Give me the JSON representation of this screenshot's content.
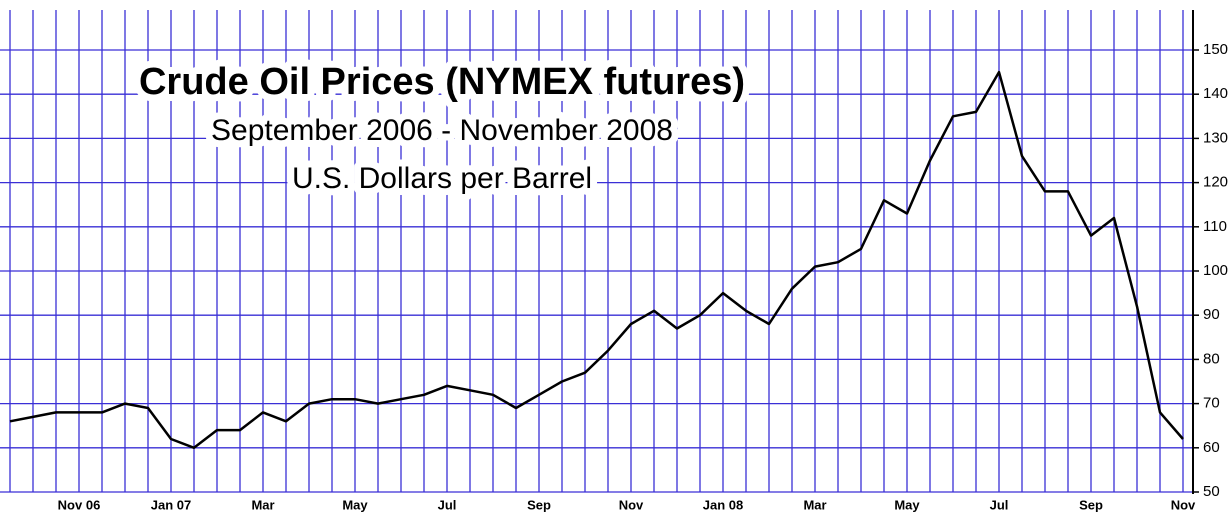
{
  "chart_data": {
    "type": "line",
    "title": "Crude Oil Prices (NYMEX futures)",
    "subtitle": "September 2006 - November 2008",
    "ylabel": "U.S. Dollars per Barrel",
    "categories": [
      null,
      null,
      null,
      "Nov 06",
      null,
      null,
      null,
      "Jan 07",
      null,
      null,
      null,
      "Mar",
      null,
      null,
      null,
      "May",
      null,
      null,
      null,
      "Jul",
      null,
      null,
      null,
      "Sep",
      null,
      null,
      null,
      "Nov",
      null,
      null,
      null,
      "Jan 08",
      null,
      null,
      null,
      "Mar",
      null,
      null,
      null,
      "May",
      null,
      null,
      null,
      "Jul",
      null,
      null,
      null,
      "Sep",
      null,
      null,
      null,
      "Nov"
    ],
    "series": [
      {
        "name": "Crude oil",
        "color": "#000000",
        "values": [
          66,
          67,
          68,
          68,
          68,
          70,
          69,
          62,
          60,
          64,
          64,
          68,
          66,
          70,
          71,
          71,
          70,
          71,
          72,
          74,
          73,
          72,
          69,
          72,
          75,
          77,
          82,
          88,
          91,
          87,
          90,
          95,
          91,
          88,
          96,
          101,
          102,
          105,
          116,
          113,
          125,
          135,
          136,
          145,
          126,
          118,
          118,
          108,
          112,
          92,
          68,
          62
        ]
      }
    ],
    "ylim": [
      50,
      150
    ],
    "yticks": [
      50,
      60,
      70,
      80,
      90,
      100,
      110,
      120,
      130,
      140,
      150
    ],
    "grid": true
  }
}
